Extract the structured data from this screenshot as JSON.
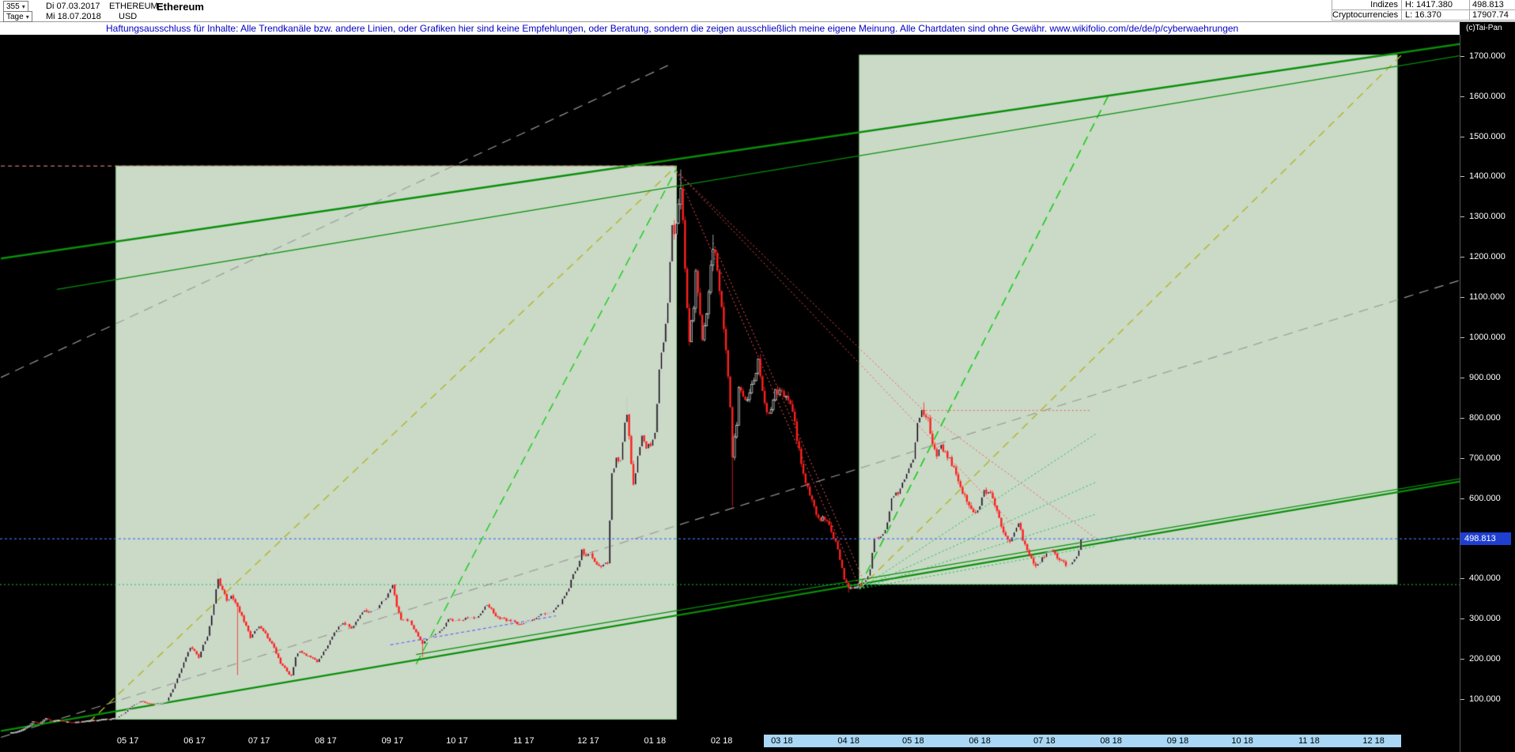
{
  "header": {
    "bars_count": "355",
    "period_label": "Tage",
    "date_first": "Di 07.03.2017",
    "date_last": "Mi 18.07.2018",
    "symbol": "ETHEREUM",
    "currency": "USD",
    "name": "Ethereum",
    "right_table": {
      "rows": [
        {
          "group": "Indizes",
          "hl": "H: 1417.380",
          "value": "498.813"
        },
        {
          "group": "Cryptocurrencies",
          "hl": "L: 16.370",
          "value": "17907.74"
        }
      ]
    },
    "copyright": "(c)Tai-Pan"
  },
  "disclaimer": {
    "text": "Haftungsausschluss für Inhalte: Alle Trendkanäle bzw. andere Linien, oder Grafiken hier sind keine Empfehlungen, oder Beratung, sondern die zeigen ausschließlich meine eigene Meinung. Alle Chartdaten sind ohne Gewähr.  ",
    "url": "www.wikifolio.com/de/de/p/cyberwaehrungen"
  },
  "chart_data": {
    "type": "candlestick",
    "title": "Ethereum USD Tageschart",
    "instrument": "ETHEREUM",
    "currency": "USD",
    "timeframe": "Tage",
    "start_date": "2017-03-07",
    "end_date": "2018-07-18",
    "last_price": 498.813,
    "period_high": 1417.38,
    "period_low": 16.37,
    "y_axis": {
      "min": 0,
      "max": 1753,
      "tick_min": 100,
      "tick_max": 1700,
      "tick_step": 100
    },
    "x_axis": {
      "labels": [
        "05 17",
        "06 17",
        "07 17",
        "08 17",
        "09 17",
        "10 17",
        "11 17",
        "12 17",
        "01 18",
        "02 18",
        "03 18",
        "04 18",
        "05 18",
        "06 18",
        "07 18",
        "08 18",
        "09 18",
        "10 18",
        "11 18",
        "12 18"
      ],
      "label_days": [
        55,
        86,
        116,
        147,
        178,
        208,
        239,
        269,
        300,
        331,
        359,
        390,
        420,
        451,
        481,
        512,
        543,
        573,
        604,
        634
      ]
    },
    "x_selection": {
      "from_day": 350.6,
      "to_day": 646.8
    },
    "anchors": [
      [
        0,
        16.4
      ],
      [
        3,
        18
      ],
      [
        6,
        24
      ],
      [
        9,
        33
      ],
      [
        11,
        44
      ],
      [
        14,
        40
      ],
      [
        17,
        52
      ],
      [
        20,
        45
      ],
      [
        23,
        48
      ],
      [
        26,
        44
      ],
      [
        29,
        42
      ],
      [
        32,
        43
      ],
      [
        35,
        45
      ],
      [
        38,
        47
      ],
      [
        41,
        48
      ],
      [
        44,
        50
      ],
      [
        47,
        51
      ],
      [
        50,
        54
      ],
      [
        53,
        64
      ],
      [
        56,
        79
      ],
      [
        59,
        90
      ],
      [
        61,
        95
      ],
      [
        64,
        90
      ],
      [
        67,
        87
      ],
      [
        70,
        89
      ],
      [
        73,
        96
      ],
      [
        76,
        125
      ],
      [
        79,
        165
      ],
      [
        82,
        205
      ],
      [
        84,
        228
      ],
      [
        86,
        222
      ],
      [
        88,
        205
      ],
      [
        90,
        235
      ],
      [
        92,
        260
      ],
      [
        94,
        310
      ],
      [
        96,
        370
      ],
      [
        97,
        400
      ],
      [
        99,
        372
      ],
      [
        101,
        345
      ],
      [
        103,
        358
      ],
      [
        105,
        342
      ],
      [
        106,
        330
      ],
      [
        108,
        305
      ],
      [
        110,
        280
      ],
      [
        112,
        255
      ],
      [
        114,
        268
      ],
      [
        116,
        280
      ],
      [
        118,
        270
      ],
      [
        120,
        252
      ],
      [
        122,
        240
      ],
      [
        124,
        215
      ],
      [
        126,
        190
      ],
      [
        128,
        178
      ],
      [
        130,
        162
      ],
      [
        131,
        157
      ],
      [
        133,
        205
      ],
      [
        135,
        222
      ],
      [
        137,
        212
      ],
      [
        139,
        208
      ],
      [
        141,
        200
      ],
      [
        143,
        192
      ],
      [
        145,
        210
      ],
      [
        147,
        225
      ],
      [
        149,
        248
      ],
      [
        151,
        268
      ],
      [
        153,
        283
      ],
      [
        155,
        292
      ],
      [
        157,
        283
      ],
      [
        159,
        278
      ],
      [
        161,
        295
      ],
      [
        163,
        308
      ],
      [
        165,
        318
      ],
      [
        167,
        314
      ],
      [
        169,
        320
      ],
      [
        171,
        326
      ],
      [
        173,
        340
      ],
      [
        175,
        355
      ],
      [
        177,
        372
      ],
      [
        178,
        388
      ],
      [
        180,
        330
      ],
      [
        182,
        300
      ],
      [
        184,
        298
      ],
      [
        186,
        295
      ],
      [
        188,
        272
      ],
      [
        190,
        255
      ],
      [
        192,
        240
      ],
      [
        194,
        252
      ],
      [
        196,
        256
      ],
      [
        198,
        260
      ],
      [
        200,
        270
      ],
      [
        202,
        282
      ],
      [
        204,
        300
      ],
      [
        206,
        296
      ],
      [
        208,
        295
      ],
      [
        210,
        295
      ],
      [
        212,
        300
      ],
      [
        214,
        303
      ],
      [
        216,
        300
      ],
      [
        218,
        310
      ],
      [
        220,
        325
      ],
      [
        222,
        335
      ],
      [
        224,
        322
      ],
      [
        226,
        308
      ],
      [
        228,
        300
      ],
      [
        230,
        298
      ],
      [
        232,
        296
      ],
      [
        234,
        295
      ],
      [
        236,
        290
      ],
      [
        238,
        288
      ],
      [
        240,
        290
      ],
      [
        242,
        294
      ],
      [
        244,
        302
      ],
      [
        246,
        310
      ],
      [
        248,
        312
      ],
      [
        250,
        315
      ],
      [
        252,
        318
      ],
      [
        254,
        325
      ],
      [
        256,
        338
      ],
      [
        258,
        360
      ],
      [
        260,
        378
      ],
      [
        262,
        410
      ],
      [
        264,
        430
      ],
      [
        266,
        470
      ],
      [
        268,
        455
      ],
      [
        270,
        460
      ],
      [
        272,
        445
      ],
      [
        274,
        430
      ],
      [
        276,
        438
      ],
      [
        278,
        440
      ],
      [
        280,
        655
      ],
      [
        282,
        700
      ],
      [
        284,
        690
      ],
      [
        286,
        780
      ],
      [
        287,
        815
      ],
      [
        289,
        680
      ],
      [
        290,
        640
      ],
      [
        292,
        700
      ],
      [
        294,
        760
      ],
      [
        296,
        720
      ],
      [
        298,
        735
      ],
      [
        300,
        755
      ],
      [
        302,
        915
      ],
      [
        304,
        1000
      ],
      [
        306,
        1090
      ],
      [
        308,
        1290
      ],
      [
        309,
        1250
      ],
      [
        311,
        1320
      ],
      [
        312,
        1385
      ],
      [
        314,
        1180
      ],
      [
        315,
        1070
      ],
      [
        316,
        1000
      ],
      [
        318,
        1080
      ],
      [
        319,
        1160
      ],
      [
        321,
        1060
      ],
      [
        322,
        990
      ],
      [
        324,
        1050
      ],
      [
        326,
        1180
      ],
      [
        327,
        1230
      ],
      [
        329,
        1170
      ],
      [
        331,
        1080
      ],
      [
        333,
        965
      ],
      [
        335,
        820
      ],
      [
        336,
        700
      ],
      [
        338,
        790
      ],
      [
        339,
        880
      ],
      [
        341,
        860
      ],
      [
        343,
        845
      ],
      [
        345,
        880
      ],
      [
        347,
        920
      ],
      [
        348,
        940
      ],
      [
        350,
        870
      ],
      [
        352,
        805
      ],
      [
        354,
        830
      ],
      [
        356,
        870
      ],
      [
        358,
        860
      ],
      [
        360,
        855
      ],
      [
        362,
        835
      ],
      [
        364,
        815
      ],
      [
        366,
        750
      ],
      [
        368,
        680
      ],
      [
        370,
        640
      ],
      [
        372,
        610
      ],
      [
        374,
        580
      ],
      [
        376,
        545
      ],
      [
        378,
        555
      ],
      [
        380,
        540
      ],
      [
        382,
        515
      ],
      [
        384,
        490
      ],
      [
        386,
        450
      ],
      [
        388,
        395
      ],
      [
        390,
        380
      ],
      [
        392,
        375
      ],
      [
        394,
        380
      ],
      [
        396,
        390
      ],
      [
        398,
        400
      ],
      [
        400,
        420
      ],
      [
        402,
        500
      ],
      [
        404,
        505
      ],
      [
        406,
        510
      ],
      [
        408,
        540
      ],
      [
        410,
        600
      ],
      [
        412,
        610
      ],
      [
        414,
        620
      ],
      [
        416,
        650
      ],
      [
        418,
        680
      ],
      [
        420,
        700
      ],
      [
        422,
        780
      ],
      [
        424,
        810
      ],
      [
        425,
        815
      ],
      [
        427,
        790
      ],
      [
        429,
        725
      ],
      [
        431,
        710
      ],
      [
        433,
        730
      ],
      [
        435,
        715
      ],
      [
        437,
        695
      ],
      [
        439,
        670
      ],
      [
        441,
        640
      ],
      [
        443,
        615
      ],
      [
        445,
        590
      ],
      [
        447,
        575
      ],
      [
        449,
        565
      ],
      [
        451,
        580
      ],
      [
        453,
        620
      ],
      [
        455,
        615
      ],
      [
        457,
        605
      ],
      [
        459,
        570
      ],
      [
        461,
        530
      ],
      [
        463,
        510
      ],
      [
        465,
        490
      ],
      [
        467,
        520
      ],
      [
        469,
        535
      ],
      [
        471,
        500
      ],
      [
        473,
        470
      ],
      [
        475,
        450
      ],
      [
        477,
        435
      ],
      [
        479,
        445
      ],
      [
        481,
        455
      ],
      [
        483,
        465
      ],
      [
        485,
        470
      ],
      [
        487,
        455
      ],
      [
        489,
        440
      ],
      [
        491,
        435
      ],
      [
        493,
        430
      ],
      [
        495,
        445
      ],
      [
        497,
        475
      ],
      [
        498,
        498.813
      ]
    ],
    "wick_overrides": [
      {
        "day": 1,
        "low": 16.37
      },
      {
        "day": 97,
        "high": 420
      },
      {
        "day": 106,
        "low": 160
      },
      {
        "day": 192,
        "low": 205
      },
      {
        "day": 287,
        "high": 850
      },
      {
        "day": 312,
        "high": 1417.38
      },
      {
        "day": 327,
        "high": 1255
      },
      {
        "day": 336,
        "low": 580
      },
      {
        "day": 390,
        "low": 365
      },
      {
        "day": 425,
        "high": 838
      }
    ],
    "colors": {
      "up_fill": "#060606",
      "up_border": "#e6e6e6",
      "up_wick": "#c8c8c8",
      "down": "#ff2020",
      "channel": "#0a8f0a",
      "yellow": "#b5b520",
      "green_dash": "#19cc19",
      "red_dot": "#ff5555",
      "pink": "#ff9090",
      "gray": "#9a9a9a",
      "blue_line": "#4d6dff",
      "green_support": "#22bb55",
      "blue_seg": "#6868ff",
      "box_fill": "rgba(224,242,221,0.9)",
      "box_border": "#8fd08f"
    },
    "overlays": [
      {
        "type": "box",
        "d": [
          49.5,
          310
        ],
        "p": [
          50,
          1426
        ]
      },
      {
        "type": "box",
        "d": [
          395,
          645
        ],
        "p": [
          386,
          1702
        ]
      },
      {
        "type": "line",
        "c": "gray",
        "dash": [
          12,
          8
        ],
        "w": 1.2,
        "d": [
          -4,
          306
        ],
        "p": [
          900,
          1676
        ]
      },
      {
        "type": "line",
        "c": "gray",
        "dash": [
          12,
          8
        ],
        "w": 1.2,
        "d": [
          -4,
          676
        ],
        "p": [
          5,
          1145
        ]
      },
      {
        "type": "line",
        "c": "yellow",
        "dash": [
          10,
          7
        ],
        "w": 1.4,
        "d": [
          37,
          310
        ],
        "p": [
          43,
          1426
        ]
      },
      {
        "type": "line",
        "c": "yellow",
        "dash": [
          10,
          7
        ],
        "w": 1.4,
        "d": [
          395,
          647
        ],
        "p": [
          374,
          1702
        ]
      },
      {
        "type": "line",
        "c": "green_dash",
        "dash": [
          12,
          7
        ],
        "w": 1.4,
        "d": [
          189,
          310
        ],
        "p": [
          187,
          1419
        ]
      },
      {
        "type": "line",
        "c": "green_dash",
        "dash": [
          12,
          7
        ],
        "w": 1.6,
        "d": [
          395,
          511
        ],
        "p": [
          379,
          1604
        ]
      },
      {
        "type": "line",
        "c": "channel",
        "w": 2.4,
        "d": [
          -4,
          676
        ],
        "p": [
          1196,
          1731
        ]
      },
      {
        "type": "line",
        "c": "channel",
        "w": 1.3,
        "d": [
          22,
          676
        ],
        "p": [
          1119,
          1702
        ]
      },
      {
        "type": "line",
        "c": "channel",
        "w": 2.4,
        "d": [
          -4,
          676
        ],
        "p": [
          21,
          643
        ]
      },
      {
        "type": "line",
        "c": "channel",
        "w": 1.2,
        "d": [
          189,
          676
        ],
        "p": [
          211,
          650
        ]
      },
      {
        "type": "line",
        "c": "red_dot",
        "dash": [
          2,
          3
        ],
        "w": 1,
        "d": [
          310,
          395
        ],
        "p": [
          1413,
          380
        ]
      },
      {
        "type": "line",
        "c": "red_dot",
        "dash": [
          2,
          3
        ],
        "w": 1,
        "d": [
          310,
          467
        ],
        "p": [
          1413,
          530
        ]
      },
      {
        "type": "line",
        "c": "red_dot",
        "dash": [
          2,
          3
        ],
        "w": 1,
        "d": [
          310,
          427
        ],
        "p": [
          1413,
          807
        ]
      },
      {
        "type": "line",
        "c": "red_dot",
        "dash": [
          2,
          3
        ],
        "w": 1,
        "d": [
          427,
          505
        ],
        "p": [
          807,
          500
        ]
      },
      {
        "type": "line",
        "c": "red_dot",
        "dash": [
          2,
          3
        ],
        "w": 1,
        "d": [
          424,
          503
        ],
        "p": [
          818,
          818
        ]
      },
      {
        "type": "line",
        "c": "red_dot",
        "dash": [
          2,
          3
        ],
        "w": 1,
        "d": [
          327,
          397
        ],
        "p": [
          1235,
          395
        ]
      },
      {
        "type": "line",
        "c": "pink",
        "dash": [
          5,
          4
        ],
        "w": 1,
        "d": [
          -4,
          310
        ],
        "p": [
          1426,
          1426
        ]
      },
      {
        "type": "line",
        "c": "blue_seg",
        "dash": [
          4,
          3
        ],
        "w": 1.2,
        "d": [
          177,
          254
        ],
        "p": [
          235,
          307
        ]
      },
      {
        "type": "line",
        "c": "green_support",
        "dash": [
          2,
          3
        ],
        "w": 1,
        "d": [
          395,
          505
        ],
        "p": [
          374,
          760
        ]
      },
      {
        "type": "line",
        "c": "green_support",
        "dash": [
          2,
          3
        ],
        "w": 1,
        "d": [
          395,
          505
        ],
        "p": [
          374,
          640
        ]
      },
      {
        "type": "line",
        "c": "green_support",
        "dash": [
          2,
          3
        ],
        "w": 1,
        "d": [
          395,
          505
        ],
        "p": [
          374,
          560
        ]
      },
      {
        "type": "line",
        "c": "green_support",
        "dash": [
          2,
          3
        ],
        "w": 1,
        "d": [
          395,
          505
        ],
        "p": [
          374,
          480
        ]
      },
      {
        "type": "hline",
        "c": "green_support",
        "dash": [
          2,
          3
        ],
        "w": 1,
        "p": 385
      },
      {
        "type": "hline",
        "c": "blue_line",
        "dash": [
          3,
          3
        ],
        "w": 1.2,
        "p": 498.813,
        "above": true
      }
    ]
  }
}
